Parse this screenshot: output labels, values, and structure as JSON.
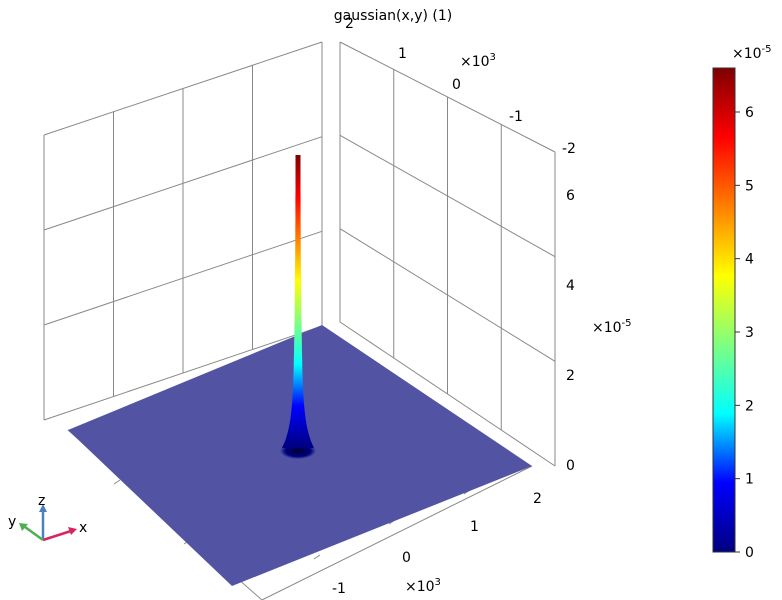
{
  "chart_data": {
    "type": "surface",
    "title": "gaussian(x,y) (1)",
    "function": "gaussian(x,y)",
    "peak": {
      "x": 0,
      "y": 0,
      "value": 6.6e-05
    },
    "plane_value": 0,
    "x_axis": {
      "multiplier": "×10",
      "exponent": "3",
      "ticks": [
        "-1",
        "0",
        "1",
        "2"
      ]
    },
    "y_axis": {
      "multiplier": "×10",
      "exponent": "3",
      "ticks": [
        "2",
        "1",
        "0",
        "-1",
        "-2"
      ]
    },
    "z_axis": {
      "multiplier": "×10",
      "exponent": "-5",
      "ticks": [
        "0",
        "2",
        "4",
        "6"
      ],
      "range": [
        0,
        6.6e-05
      ]
    },
    "colorbar": {
      "multiplier": "×10",
      "exponent": "-5",
      "ticks": [
        "0",
        "1",
        "2",
        "3",
        "4",
        "5",
        "6"
      ],
      "range": [
        0,
        6.6e-05
      ],
      "colormap": "rainbow",
      "stops": [
        "#00007f",
        "#0000ff",
        "#00ffff",
        "#7fff7f",
        "#ffff00",
        "#ff7f00",
        "#ff0000",
        "#7f0000"
      ]
    },
    "grid": true,
    "surface_color": "#5254a3"
  },
  "triad": {
    "x_label": "x",
    "y_label": "y",
    "z_label": "z",
    "x_color": "#d6265e",
    "y_color": "#4caf50",
    "z_color": "#4a7fc1"
  }
}
